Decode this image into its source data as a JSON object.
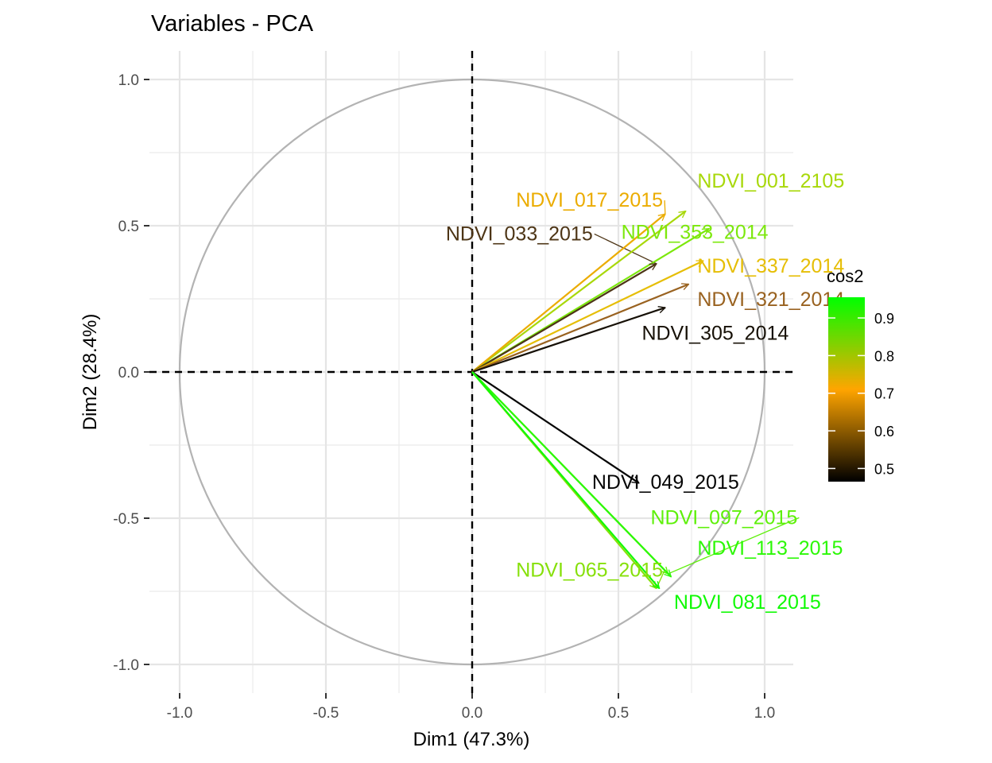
{
  "chart_data": {
    "type": "pca-correlation-circle",
    "title": "Variables - PCA",
    "xlabel": "Dim1 (47.3%)",
    "ylabel": "Dim2 (28.4%)",
    "xlim": [
      -1.1,
      1.1
    ],
    "ylim": [
      -1.1,
      1.1
    ],
    "x_ticks": [
      -1.0,
      -0.5,
      0.0,
      0.5,
      1.0
    ],
    "x_tick_labels": [
      "-1.0",
      "-0.5",
      "0.0",
      "0.5",
      "1.0"
    ],
    "y_ticks": [
      -1.0,
      -0.5,
      0.0,
      0.5,
      1.0
    ],
    "y_tick_labels": [
      "-1.0",
      "-0.5",
      "0.0",
      "0.5",
      "1.0"
    ],
    "grid": true,
    "unit_circle": true,
    "reference_lines": [
      "x=0",
      "y=0"
    ],
    "legend": {
      "title": "cos2",
      "position": "right",
      "ticks": [
        0.5,
        0.6,
        0.7,
        0.8,
        0.9
      ],
      "tick_labels": [
        "0.5",
        "0.6",
        "0.7",
        "0.8",
        "0.9"
      ],
      "range": [
        0.465,
        0.955
      ],
      "gradient": [
        "#000000",
        "#FFA500",
        "#00FF00"
      ]
    },
    "variables": [
      {
        "name": "NDVI_001_2105",
        "x": 0.73,
        "y": 0.55,
        "cos2": 0.84,
        "label_x": 0.77,
        "label_y": 0.63,
        "color": "#a8d80a"
      },
      {
        "name": "NDVI_017_2015",
        "x": 0.66,
        "y": 0.54,
        "cos2": 0.72,
        "label_x": 0.15,
        "label_y": 0.565,
        "color": "#ebac00",
        "leader": true
      },
      {
        "name": "NDVI_353_2014",
        "x": 0.81,
        "y": 0.49,
        "cos2": 0.9,
        "label_x": 0.51,
        "label_y": 0.455,
        "color": "#7ce80c"
      },
      {
        "name": "NDVI_033_2015",
        "x": 0.63,
        "y": 0.37,
        "cos2": 0.53,
        "label_x": -0.09,
        "label_y": 0.45,
        "color": "#4d3516",
        "leader": true
      },
      {
        "name": "NDVI_337_2014",
        "x": 0.79,
        "y": 0.38,
        "cos2": 0.77,
        "label_x": 0.77,
        "label_y": 0.34,
        "color": "#e6be05"
      },
      {
        "name": "NDVI_321_2014",
        "x": 0.74,
        "y": 0.3,
        "cos2": 0.63,
        "label_x": 0.77,
        "label_y": 0.225,
        "color": "#996220"
      },
      {
        "name": "NDVI_305_2014",
        "x": 0.66,
        "y": 0.22,
        "cos2": 0.49,
        "label_x": 0.58,
        "label_y": 0.11,
        "color": "#161006"
      },
      {
        "name": "NDVI_049_2015",
        "x": 0.57,
        "y": -0.38,
        "cos2": 0.47,
        "label_x": 0.41,
        "label_y": -0.4,
        "color": "#050505"
      },
      {
        "name": "NDVI_097_2015",
        "x": 0.67,
        "y": -0.69,
        "cos2": 0.91,
        "label_x": 0.61,
        "label_y": -0.52,
        "color": "#5ef00a",
        "leader": true
      },
      {
        "name": "NDVI_113_2015",
        "x": 0.68,
        "y": -0.7,
        "cos2": 0.95,
        "label_x": 0.77,
        "label_y": -0.625,
        "color": "#2cf806"
      },
      {
        "name": "NDVI_065_2015",
        "x": 0.63,
        "y": -0.74,
        "cos2": 0.88,
        "label_x": 0.15,
        "label_y": -0.7,
        "color": "#86e00a",
        "leader": true
      },
      {
        "name": "NDVI_081_2015",
        "x": 0.64,
        "y": -0.74,
        "cos2": 0.96,
        "label_x": 0.69,
        "label_y": -0.81,
        "color": "#10fa04"
      }
    ]
  }
}
